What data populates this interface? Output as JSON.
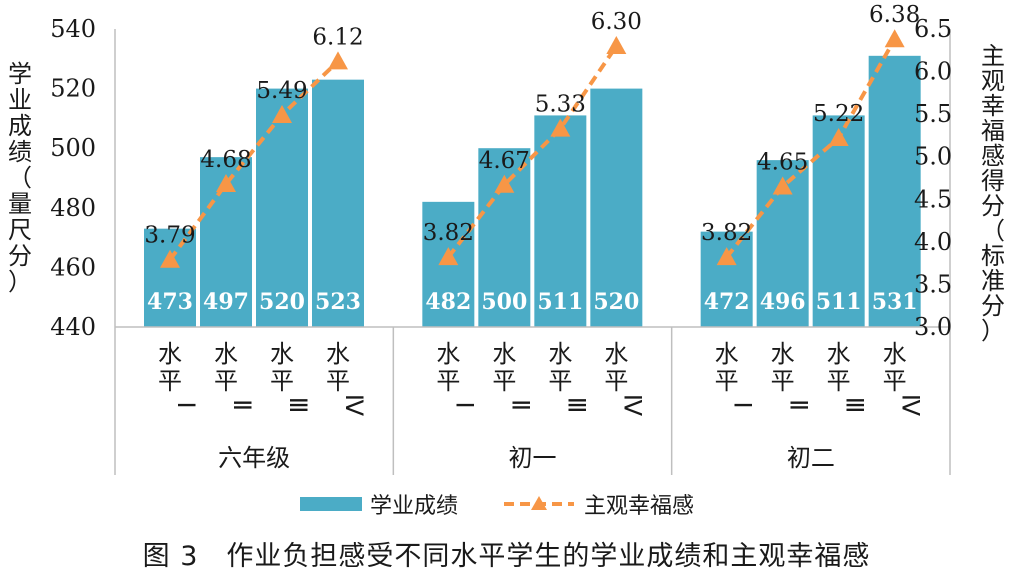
{
  "chart_data": {
    "type": "bar",
    "caption": "图 3　作业负担感受不同水平学生的学业成绩和主观幸福感",
    "y_left_label": "学业成绩（量尺分）",
    "y_right_label": "主观幸福感得分（标准分）",
    "y_left_lim": [
      440,
      540
    ],
    "y_left_ticks": [
      440,
      460,
      480,
      500,
      520,
      540
    ],
    "y_right_lim": [
      3.0,
      6.5
    ],
    "y_right_ticks": [
      "3.0",
      "3.5",
      "4.0",
      "4.5",
      "5.0",
      "5.5",
      "6.0",
      "6.5"
    ],
    "groups": [
      {
        "name": "六年级",
        "levels": [
          "水平Ⅰ",
          "水平Ⅱ",
          "水平Ⅲ",
          "水平Ⅳ"
        ],
        "scores": [
          473,
          497,
          520,
          523
        ],
        "wellbeing": [
          "3.79",
          "4.68",
          "5.49",
          "6.12"
        ]
      },
      {
        "name": "初一",
        "levels": [
          "水平Ⅰ",
          "水平Ⅱ",
          "水平Ⅲ",
          "水平Ⅳ"
        ],
        "scores": [
          482,
          500,
          511,
          520
        ],
        "wellbeing": [
          "3.82",
          "4.67",
          "5.33",
          "6.30"
        ]
      },
      {
        "name": "初二",
        "levels": [
          "水平Ⅰ",
          "水平Ⅱ",
          "水平Ⅲ",
          "水平Ⅳ"
        ],
        "scores": [
          472,
          496,
          511,
          531
        ],
        "wellbeing": [
          "3.82",
          "4.65",
          "5.22",
          "6.38"
        ]
      }
    ],
    "series": [
      {
        "name": "学业成绩",
        "type": "bar",
        "color": "#4BACC6"
      },
      {
        "name": "主观幸福感",
        "type": "line",
        "color": "#F79646",
        "style": "dashed",
        "marker": "triangle"
      }
    ],
    "legend_position": "bottom",
    "grid": false
  }
}
